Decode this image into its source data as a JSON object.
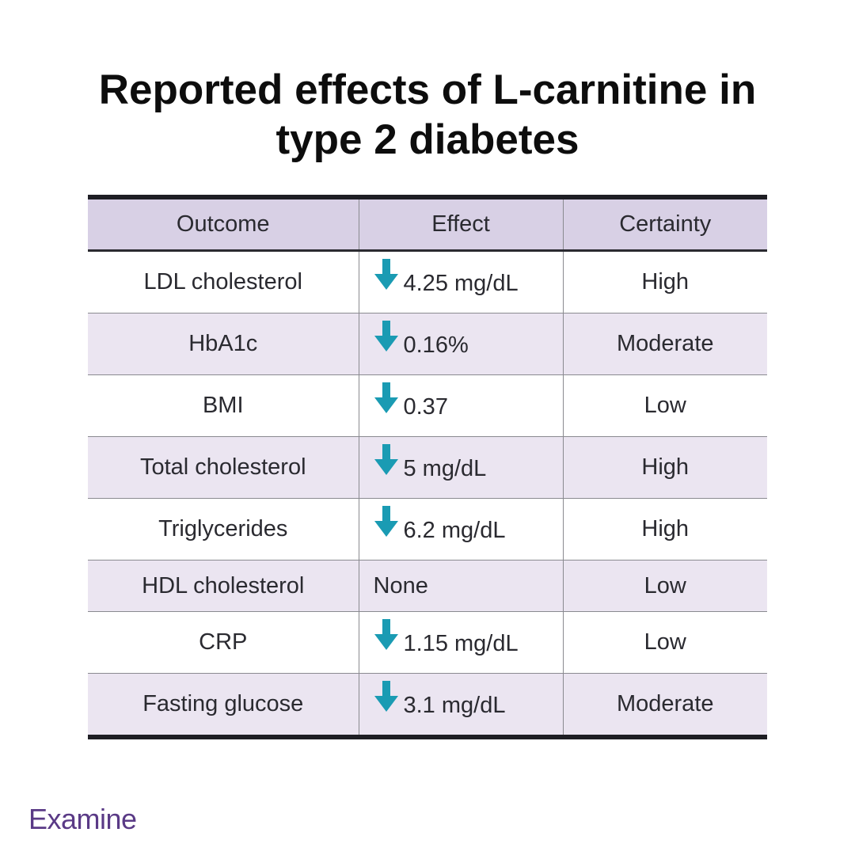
{
  "title_line1": "Reported effects of L-carnitine in",
  "title_line2": "type 2 diabetes",
  "table": {
    "headers": [
      "Outcome",
      "Effect",
      "Certainty"
    ],
    "rows": [
      {
        "outcome": "LDL cholesterol",
        "arrow": "down",
        "effect": "4.25 mg/dL",
        "certainty": "High"
      },
      {
        "outcome": "HbA1c",
        "arrow": "down",
        "effect": "0.16%",
        "certainty": "Moderate"
      },
      {
        "outcome": "BMI",
        "arrow": "down",
        "effect": "0.37",
        "certainty": "Low"
      },
      {
        "outcome": "Total cholesterol",
        "arrow": "down",
        "effect": "5 mg/dL",
        "certainty": "High"
      },
      {
        "outcome": "Triglycerides",
        "arrow": "down",
        "effect": "6.2 mg/dL",
        "certainty": "High"
      },
      {
        "outcome": "HDL cholesterol",
        "arrow": "none",
        "effect": "None",
        "certainty": "Low"
      },
      {
        "outcome": "CRP",
        "arrow": "down",
        "effect": "1.15 mg/dL",
        "certainty": "Low"
      },
      {
        "outcome": "Fasting glucose",
        "arrow": "down",
        "effect": "3.1 mg/dL",
        "certainty": "Moderate"
      }
    ]
  },
  "icons": {
    "decrease": "arrow-down-icon"
  },
  "colors": {
    "arrow": "#1a9bb3",
    "header_bg": "#d8d0e5",
    "stripe_bg": "#ebe5f1",
    "brand": "#5a3a86"
  },
  "brand": "Examine"
}
